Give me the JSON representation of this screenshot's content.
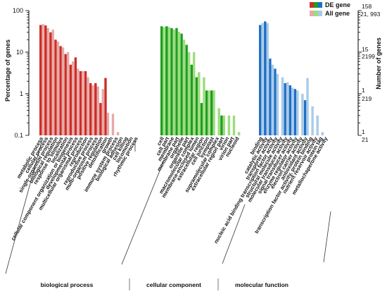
{
  "chart_data": {
    "type": "bar",
    "xlabel": "",
    "ylabel": "Percentage of genes",
    "ylabel_right": "Number of genes",
    "yscale": "log",
    "ylim": [
      0.1,
      100
    ],
    "y_ticks": [
      "0.1",
      "1",
      "10",
      "100"
    ],
    "right_axis": {
      "de_gene_ticks": [
        "158",
        "15",
        "1"
      ],
      "all_gene_ticks": [
        "21, 993",
        "2199",
        "219",
        "21"
      ]
    },
    "legend_placement": "top-right",
    "series": [
      {
        "name": "DE gene",
        "colors": {
          "bp": "#cc2f26",
          "cc": "#1f9e1f",
          "mf": "#1f6fc4"
        }
      },
      {
        "name": "All gene",
        "colors": {
          "bp": "#e7a9a9",
          "cc": "#9ddc7e",
          "mf": "#a9cbe9"
        }
      }
    ],
    "groups": [
      {
        "name": "biological process",
        "categories": [
          {
            "label": "metabolic process",
            "de": 45,
            "all": 47
          },
          {
            "label": "cellular process",
            "de": 44,
            "all": 38
          },
          {
            "label": "single-organism process",
            "de": 30,
            "all": 35
          },
          {
            "label": "biological regulation",
            "de": 20,
            "all": 18
          },
          {
            "label": "response to stimulus",
            "de": 14,
            "all": 13
          },
          {
            "label": "localization",
            "de": 9,
            "all": 10
          },
          {
            "label": "cellular component organization or biogenesis",
            "de": 5,
            "all": 6
          },
          {
            "label": "developmental process",
            "de": 7.5,
            "all": 4
          },
          {
            "label": "multicellular organismal process",
            "de": 3.5,
            "all": 3.5
          },
          {
            "label": "reproduction",
            "de": 3.5,
            "all": 2.5
          },
          {
            "label": "reproductive process",
            "de": 1.8,
            "all": 1.6
          },
          {
            "label": "multi-organism process",
            "de": 1.8,
            "all": 1.5
          },
          {
            "label": "positive regulation",
            "de": 0.6,
            "all": 1.3
          },
          {
            "label": "detoxification",
            "de": 2.4,
            "all": 0.35
          },
          {
            "label": "growth",
            "de": 0,
            "all": 0.33
          },
          {
            "label": "immune system process",
            "de": 0,
            "all": 0.12
          },
          {
            "label": "biological adhesion",
            "de": 0,
            "all": 0.1
          },
          {
            "label": "cell killing",
            "de": 0,
            "all": 0.1
          },
          {
            "label": "locomotion",
            "de": 0,
            "all": 0.1
          },
          {
            "label": "rhythmic process",
            "de": 0,
            "all": 0.1
          }
        ]
      },
      {
        "name": "cellular component",
        "categories": [
          {
            "label": "cell",
            "de": 42,
            "all": 40
          },
          {
            "label": "cell part",
            "de": 42,
            "all": 40
          },
          {
            "label": "membrane",
            "de": 38,
            "all": 35
          },
          {
            "label": "membrane part",
            "de": 38,
            "all": 31
          },
          {
            "label": "organelle",
            "de": 28,
            "all": 20
          },
          {
            "label": "organelle part",
            "de": 15,
            "all": 10
          },
          {
            "label": "macromolecular complex",
            "de": 5,
            "all": 10
          },
          {
            "label": "membrane-enclosed lumen",
            "de": 2.5,
            "all": 3.3
          },
          {
            "label": "extracellular region",
            "de": 0.6,
            "all": 2.5
          },
          {
            "label": "cell junction",
            "de": 1.2,
            "all": 1.2
          },
          {
            "label": "symplast",
            "de": 1.2,
            "all": 1.2
          },
          {
            "label": "supramolecular complex",
            "de": 0,
            "all": 0.45
          },
          {
            "label": "extracellular region part",
            "de": 0.3,
            "all": 0.3
          },
          {
            "label": "virion",
            "de": 0,
            "all": 0.3
          },
          {
            "label": "virion part",
            "de": 0,
            "all": 0.3
          },
          {
            "label": "nucleoid",
            "de": 0,
            "all": 0.12
          }
        ]
      },
      {
        "name": "molecular function",
        "categories": [
          {
            "label": "binding",
            "de": 45,
            "all": 50
          },
          {
            "label": "catalytic activity",
            "de": 55,
            "all": 50
          },
          {
            "label": "transporter activity",
            "de": 7,
            "all": 5
          },
          {
            "label": "nucleic acid binding transcription factor activity",
            "de": 4,
            "all": 3
          },
          {
            "label": "structural molecule activity",
            "de": 0,
            "all": 2.5
          },
          {
            "label": "molecular transducer activity",
            "de": 1.8,
            "all": 1.9
          },
          {
            "label": "signal transducer activity",
            "de": 1.6,
            "all": 1.4
          },
          {
            "label": "enzyme regulator activity",
            "de": 1.3,
            "all": 1.2
          },
          {
            "label": "electron carrier activity",
            "de": 0,
            "all": 1
          },
          {
            "label": "antioxidant activity",
            "de": 0.7,
            "all": 2.4
          },
          {
            "label": "transcription factor activity, protein binding",
            "de": 0,
            "all": 0.5
          },
          {
            "label": "nutrient reservoir activity",
            "de": 0,
            "all": 0.3
          },
          {
            "label": "protein tag",
            "de": 0,
            "all": 0.12
          },
          {
            "label": "metallochaperone activity",
            "de": 0,
            "all": 0.1
          }
        ]
      }
    ]
  }
}
